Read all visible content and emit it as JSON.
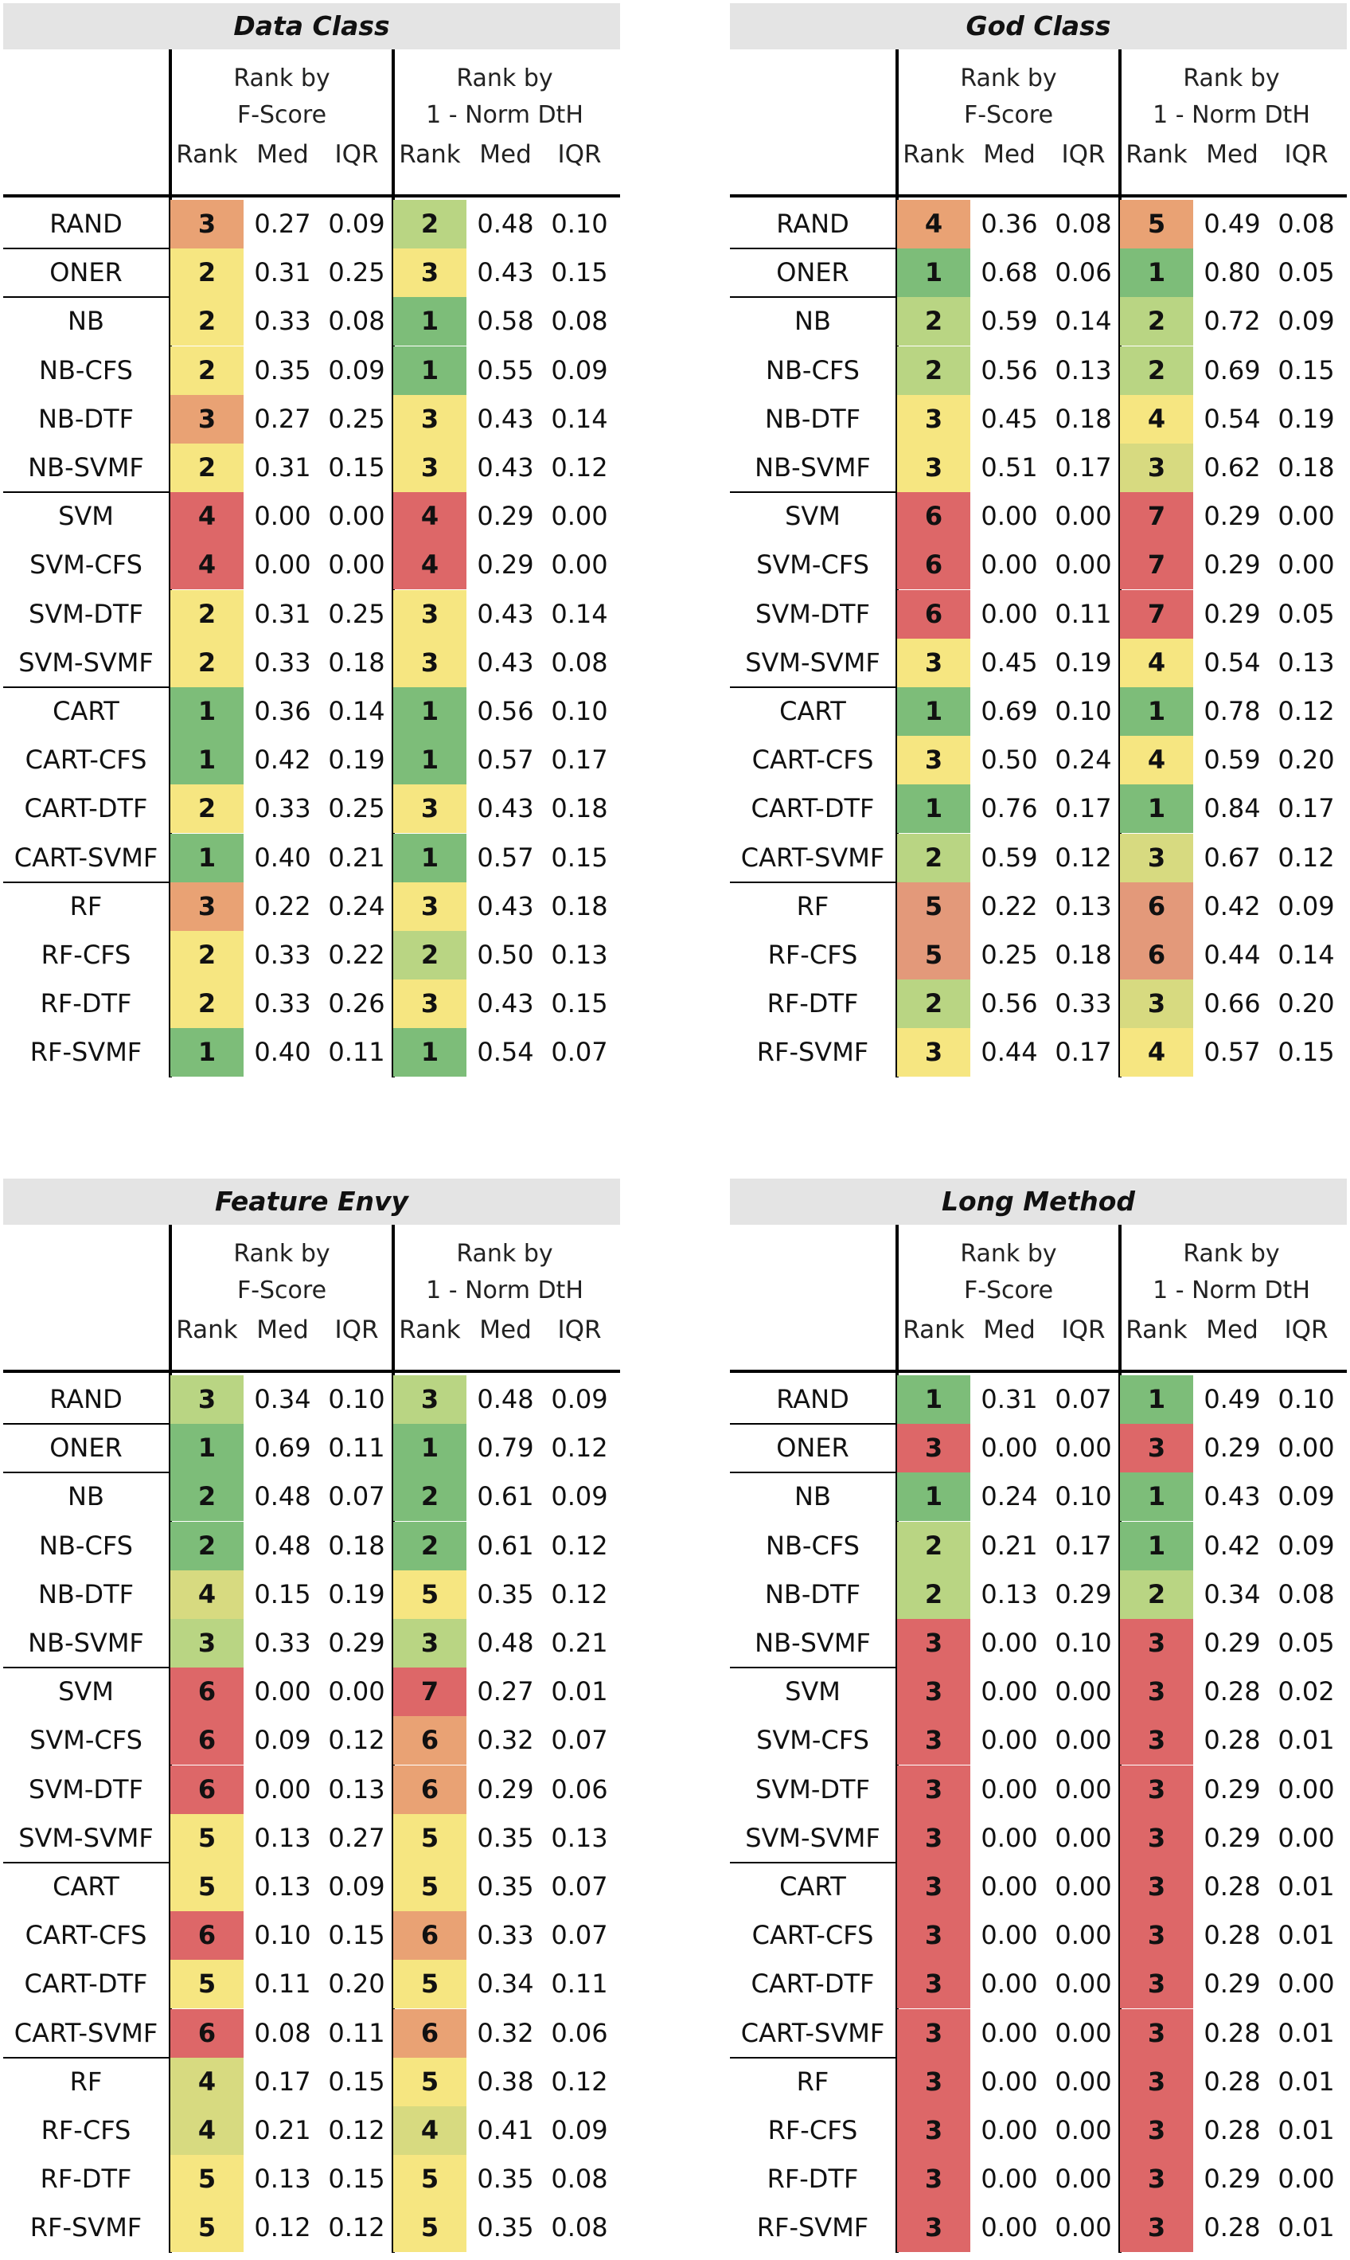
{
  "colors": {
    "1": "#7dbd79",
    "2": "#b9d583",
    "3": "#d7da80",
    "4": "#f5e580",
    "5": "#e8a675",
    "6": "#e3997a",
    "7": "#dd6768",
    "bad": "#dd6768",
    "mid": "#e9a274",
    "warn": "#f6e681"
  },
  "headers": {
    "group1": [
      "Rank by",
      "F-Score"
    ],
    "group2": [
      "Rank by",
      "1 - Norm DtH"
    ],
    "cols": [
      "Rank",
      "Med",
      "IQR",
      "Rank",
      "Med",
      "IQR"
    ]
  },
  "panels": [
    {
      "title": "Data Class",
      "rows": [
        {
          "label": "RAND",
          "f": [
            "3",
            "0.27",
            "0.09"
          ],
          "d": [
            "2",
            "0.48",
            "0.10"
          ],
          "fc": "mid",
          "dc": "2"
        },
        {
          "label": "ONER",
          "f": [
            "2",
            "0.31",
            "0.25"
          ],
          "d": [
            "3",
            "0.43",
            "0.15"
          ],
          "fc": "warn",
          "dc": "warn"
        },
        {
          "label": "NB",
          "f": [
            "2",
            "0.33",
            "0.08"
          ],
          "d": [
            "1",
            "0.58",
            "0.08"
          ],
          "fc": "warn",
          "dc": "1"
        },
        {
          "label": "NB-CFS",
          "f": [
            "2",
            "0.35",
            "0.09"
          ],
          "d": [
            "1",
            "0.55",
            "0.09"
          ],
          "fc": "warn",
          "dc": "1"
        },
        {
          "label": "NB-DTF",
          "f": [
            "3",
            "0.27",
            "0.25"
          ],
          "d": [
            "3",
            "0.43",
            "0.14"
          ],
          "fc": "mid",
          "dc": "warn"
        },
        {
          "label": "NB-SVMF",
          "f": [
            "2",
            "0.31",
            "0.15"
          ],
          "d": [
            "3",
            "0.43",
            "0.12"
          ],
          "fc": "warn",
          "dc": "warn"
        },
        {
          "label": "SVM",
          "f": [
            "4",
            "0.00",
            "0.00"
          ],
          "d": [
            "4",
            "0.29",
            "0.00"
          ],
          "fc": "bad",
          "dc": "bad"
        },
        {
          "label": "SVM-CFS",
          "f": [
            "4",
            "0.00",
            "0.00"
          ],
          "d": [
            "4",
            "0.29",
            "0.00"
          ],
          "fc": "bad",
          "dc": "bad"
        },
        {
          "label": "SVM-DTF",
          "f": [
            "2",
            "0.31",
            "0.25"
          ],
          "d": [
            "3",
            "0.43",
            "0.14"
          ],
          "fc": "warn",
          "dc": "warn"
        },
        {
          "label": "SVM-SVMF",
          "f": [
            "2",
            "0.33",
            "0.18"
          ],
          "d": [
            "3",
            "0.43",
            "0.08"
          ],
          "fc": "warn",
          "dc": "warn"
        },
        {
          "label": "CART",
          "f": [
            "1",
            "0.36",
            "0.14"
          ],
          "d": [
            "1",
            "0.56",
            "0.10"
          ],
          "fc": "1",
          "dc": "1"
        },
        {
          "label": "CART-CFS",
          "f": [
            "1",
            "0.42",
            "0.19"
          ],
          "d": [
            "1",
            "0.57",
            "0.17"
          ],
          "fc": "1",
          "dc": "1"
        },
        {
          "label": "CART-DTF",
          "f": [
            "2",
            "0.33",
            "0.25"
          ],
          "d": [
            "3",
            "0.43",
            "0.18"
          ],
          "fc": "warn",
          "dc": "warn"
        },
        {
          "label": "CART-SVMF",
          "f": [
            "1",
            "0.40",
            "0.21"
          ],
          "d": [
            "1",
            "0.57",
            "0.15"
          ],
          "fc": "1",
          "dc": "1"
        },
        {
          "label": "RF",
          "f": [
            "3",
            "0.22",
            "0.24"
          ],
          "d": [
            "3",
            "0.43",
            "0.18"
          ],
          "fc": "mid",
          "dc": "warn"
        },
        {
          "label": "RF-CFS",
          "f": [
            "2",
            "0.33",
            "0.22"
          ],
          "d": [
            "2",
            "0.50",
            "0.13"
          ],
          "fc": "warn",
          "dc": "2"
        },
        {
          "label": "RF-DTF",
          "f": [
            "2",
            "0.33",
            "0.26"
          ],
          "d": [
            "3",
            "0.43",
            "0.15"
          ],
          "fc": "warn",
          "dc": "warn"
        },
        {
          "label": "RF-SVMF",
          "f": [
            "1",
            "0.40",
            "0.11"
          ],
          "d": [
            "1",
            "0.54",
            "0.07"
          ],
          "fc": "1",
          "dc": "1"
        }
      ]
    },
    {
      "title": "God Class",
      "rows": [
        {
          "label": "RAND",
          "f": [
            "4",
            "0.36",
            "0.08"
          ],
          "d": [
            "5",
            "0.49",
            "0.08"
          ],
          "fc": "mid",
          "dc": "mid"
        },
        {
          "label": "ONER",
          "f": [
            "1",
            "0.68",
            "0.06"
          ],
          "d": [
            "1",
            "0.80",
            "0.05"
          ],
          "fc": "1",
          "dc": "1"
        },
        {
          "label": "NB",
          "f": [
            "2",
            "0.59",
            "0.14"
          ],
          "d": [
            "2",
            "0.72",
            "0.09"
          ],
          "fc": "2",
          "dc": "2"
        },
        {
          "label": "NB-CFS",
          "f": [
            "2",
            "0.56",
            "0.13"
          ],
          "d": [
            "2",
            "0.69",
            "0.15"
          ],
          "fc": "2",
          "dc": "2"
        },
        {
          "label": "NB-DTF",
          "f": [
            "3",
            "0.45",
            "0.18"
          ],
          "d": [
            "4",
            "0.54",
            "0.19"
          ],
          "fc": "warn",
          "dc": "warn"
        },
        {
          "label": "NB-SVMF",
          "f": [
            "3",
            "0.51",
            "0.17"
          ],
          "d": [
            "3",
            "0.62",
            "0.18"
          ],
          "fc": "warn",
          "dc": "3"
        },
        {
          "label": "SVM",
          "f": [
            "6",
            "0.00",
            "0.00"
          ],
          "d": [
            "7",
            "0.29",
            "0.00"
          ],
          "fc": "bad",
          "dc": "bad"
        },
        {
          "label": "SVM-CFS",
          "f": [
            "6",
            "0.00",
            "0.00"
          ],
          "d": [
            "7",
            "0.29",
            "0.00"
          ],
          "fc": "bad",
          "dc": "bad"
        },
        {
          "label": "SVM-DTF",
          "f": [
            "6",
            "0.00",
            "0.11"
          ],
          "d": [
            "7",
            "0.29",
            "0.05"
          ],
          "fc": "bad",
          "dc": "bad"
        },
        {
          "label": "SVM-SVMF",
          "f": [
            "3",
            "0.45",
            "0.19"
          ],
          "d": [
            "4",
            "0.54",
            "0.13"
          ],
          "fc": "warn",
          "dc": "warn"
        },
        {
          "label": "CART",
          "f": [
            "1",
            "0.69",
            "0.10"
          ],
          "d": [
            "1",
            "0.78",
            "0.12"
          ],
          "fc": "1",
          "dc": "1"
        },
        {
          "label": "CART-CFS",
          "f": [
            "3",
            "0.50",
            "0.24"
          ],
          "d": [
            "4",
            "0.59",
            "0.20"
          ],
          "fc": "warn",
          "dc": "warn"
        },
        {
          "label": "CART-DTF",
          "f": [
            "1",
            "0.76",
            "0.17"
          ],
          "d": [
            "1",
            "0.84",
            "0.17"
          ],
          "fc": "1",
          "dc": "1"
        },
        {
          "label": "CART-SVMF",
          "f": [
            "2",
            "0.59",
            "0.12"
          ],
          "d": [
            "3",
            "0.67",
            "0.12"
          ],
          "fc": "2",
          "dc": "3"
        },
        {
          "label": "RF",
          "f": [
            "5",
            "0.22",
            "0.13"
          ],
          "d": [
            "6",
            "0.42",
            "0.09"
          ],
          "fc": "6",
          "dc": "6"
        },
        {
          "label": "RF-CFS",
          "f": [
            "5",
            "0.25",
            "0.18"
          ],
          "d": [
            "6",
            "0.44",
            "0.14"
          ],
          "fc": "6",
          "dc": "6"
        },
        {
          "label": "RF-DTF",
          "f": [
            "2",
            "0.56",
            "0.33"
          ],
          "d": [
            "3",
            "0.66",
            "0.20"
          ],
          "fc": "2",
          "dc": "3"
        },
        {
          "label": "RF-SVMF",
          "f": [
            "3",
            "0.44",
            "0.17"
          ],
          "d": [
            "4",
            "0.57",
            "0.15"
          ],
          "fc": "warn",
          "dc": "warn"
        }
      ]
    },
    {
      "title": "Feature Envy",
      "rows": [
        {
          "label": "RAND",
          "f": [
            "3",
            "0.34",
            "0.10"
          ],
          "d": [
            "3",
            "0.48",
            "0.09"
          ],
          "fc": "2",
          "dc": "2"
        },
        {
          "label": "ONER",
          "f": [
            "1",
            "0.69",
            "0.11"
          ],
          "d": [
            "1",
            "0.79",
            "0.12"
          ],
          "fc": "1",
          "dc": "1"
        },
        {
          "label": "NB",
          "f": [
            "2",
            "0.48",
            "0.07"
          ],
          "d": [
            "2",
            "0.61",
            "0.09"
          ],
          "fc": "1",
          "dc": "1"
        },
        {
          "label": "NB-CFS",
          "f": [
            "2",
            "0.48",
            "0.18"
          ],
          "d": [
            "2",
            "0.61",
            "0.12"
          ],
          "fc": "1",
          "dc": "1"
        },
        {
          "label": "NB-DTF",
          "f": [
            "4",
            "0.15",
            "0.19"
          ],
          "d": [
            "5",
            "0.35",
            "0.12"
          ],
          "fc": "3",
          "dc": "warn"
        },
        {
          "label": "NB-SVMF",
          "f": [
            "3",
            "0.33",
            "0.29"
          ],
          "d": [
            "3",
            "0.48",
            "0.21"
          ],
          "fc": "2",
          "dc": "2"
        },
        {
          "label": "SVM",
          "f": [
            "6",
            "0.00",
            "0.00"
          ],
          "d": [
            "7",
            "0.27",
            "0.01"
          ],
          "fc": "bad",
          "dc": "bad"
        },
        {
          "label": "SVM-CFS",
          "f": [
            "6",
            "0.09",
            "0.12"
          ],
          "d": [
            "6",
            "0.32",
            "0.07"
          ],
          "fc": "bad",
          "dc": "mid"
        },
        {
          "label": "SVM-DTF",
          "f": [
            "6",
            "0.00",
            "0.13"
          ],
          "d": [
            "6",
            "0.29",
            "0.06"
          ],
          "fc": "bad",
          "dc": "mid"
        },
        {
          "label": "SVM-SVMF",
          "f": [
            "5",
            "0.13",
            "0.27"
          ],
          "d": [
            "5",
            "0.35",
            "0.13"
          ],
          "fc": "warn",
          "dc": "warn"
        },
        {
          "label": "CART",
          "f": [
            "5",
            "0.13",
            "0.09"
          ],
          "d": [
            "5",
            "0.35",
            "0.07"
          ],
          "fc": "warn",
          "dc": "warn"
        },
        {
          "label": "CART-CFS",
          "f": [
            "6",
            "0.10",
            "0.15"
          ],
          "d": [
            "6",
            "0.33",
            "0.07"
          ],
          "fc": "bad",
          "dc": "mid"
        },
        {
          "label": "CART-DTF",
          "f": [
            "5",
            "0.11",
            "0.20"
          ],
          "d": [
            "5",
            "0.34",
            "0.11"
          ],
          "fc": "warn",
          "dc": "warn"
        },
        {
          "label": "CART-SVMF",
          "f": [
            "6",
            "0.08",
            "0.11"
          ],
          "d": [
            "6",
            "0.32",
            "0.06"
          ],
          "fc": "bad",
          "dc": "mid"
        },
        {
          "label": "RF",
          "f": [
            "4",
            "0.17",
            "0.15"
          ],
          "d": [
            "5",
            "0.38",
            "0.12"
          ],
          "fc": "3",
          "dc": "warn"
        },
        {
          "label": "RF-CFS",
          "f": [
            "4",
            "0.21",
            "0.12"
          ],
          "d": [
            "4",
            "0.41",
            "0.09"
          ],
          "fc": "3",
          "dc": "3"
        },
        {
          "label": "RF-DTF",
          "f": [
            "5",
            "0.13",
            "0.15"
          ],
          "d": [
            "5",
            "0.35",
            "0.08"
          ],
          "fc": "warn",
          "dc": "warn"
        },
        {
          "label": "RF-SVMF",
          "f": [
            "5",
            "0.12",
            "0.12"
          ],
          "d": [
            "5",
            "0.35",
            "0.08"
          ],
          "fc": "warn",
          "dc": "warn"
        }
      ]
    },
    {
      "title": "Long Method",
      "rows": [
        {
          "label": "RAND",
          "f": [
            "1",
            "0.31",
            "0.07"
          ],
          "d": [
            "1",
            "0.49",
            "0.10"
          ],
          "fc": "1",
          "dc": "1"
        },
        {
          "label": "ONER",
          "f": [
            "3",
            "0.00",
            "0.00"
          ],
          "d": [
            "3",
            "0.29",
            "0.00"
          ],
          "fc": "bad",
          "dc": "bad"
        },
        {
          "label": "NB",
          "f": [
            "1",
            "0.24",
            "0.10"
          ],
          "d": [
            "1",
            "0.43",
            "0.09"
          ],
          "fc": "1",
          "dc": "1"
        },
        {
          "label": "NB-CFS",
          "f": [
            "2",
            "0.21",
            "0.17"
          ],
          "d": [
            "1",
            "0.42",
            "0.09"
          ],
          "fc": "2",
          "dc": "1"
        },
        {
          "label": "NB-DTF",
          "f": [
            "2",
            "0.13",
            "0.29"
          ],
          "d": [
            "2",
            "0.34",
            "0.08"
          ],
          "fc": "2",
          "dc": "2"
        },
        {
          "label": "NB-SVMF",
          "f": [
            "3",
            "0.00",
            "0.10"
          ],
          "d": [
            "3",
            "0.29",
            "0.05"
          ],
          "fc": "bad",
          "dc": "bad"
        },
        {
          "label": "SVM",
          "f": [
            "3",
            "0.00",
            "0.00"
          ],
          "d": [
            "3",
            "0.28",
            "0.02"
          ],
          "fc": "bad",
          "dc": "bad"
        },
        {
          "label": "SVM-CFS",
          "f": [
            "3",
            "0.00",
            "0.00"
          ],
          "d": [
            "3",
            "0.28",
            "0.01"
          ],
          "fc": "bad",
          "dc": "bad"
        },
        {
          "label": "SVM-DTF",
          "f": [
            "3",
            "0.00",
            "0.00"
          ],
          "d": [
            "3",
            "0.29",
            "0.00"
          ],
          "fc": "bad",
          "dc": "bad"
        },
        {
          "label": "SVM-SVMF",
          "f": [
            "3",
            "0.00",
            "0.00"
          ],
          "d": [
            "3",
            "0.29",
            "0.00"
          ],
          "fc": "bad",
          "dc": "bad"
        },
        {
          "label": "CART",
          "f": [
            "3",
            "0.00",
            "0.00"
          ],
          "d": [
            "3",
            "0.28",
            "0.01"
          ],
          "fc": "bad",
          "dc": "bad"
        },
        {
          "label": "CART-CFS",
          "f": [
            "3",
            "0.00",
            "0.00"
          ],
          "d": [
            "3",
            "0.28",
            "0.01"
          ],
          "fc": "bad",
          "dc": "bad"
        },
        {
          "label": "CART-DTF",
          "f": [
            "3",
            "0.00",
            "0.00"
          ],
          "d": [
            "3",
            "0.29",
            "0.00"
          ],
          "fc": "bad",
          "dc": "bad"
        },
        {
          "label": "CART-SVMF",
          "f": [
            "3",
            "0.00",
            "0.00"
          ],
          "d": [
            "3",
            "0.28",
            "0.01"
          ],
          "fc": "bad",
          "dc": "bad"
        },
        {
          "label": "RF",
          "f": [
            "3",
            "0.00",
            "0.00"
          ],
          "d": [
            "3",
            "0.28",
            "0.01"
          ],
          "fc": "bad",
          "dc": "bad"
        },
        {
          "label": "RF-CFS",
          "f": [
            "3",
            "0.00",
            "0.00"
          ],
          "d": [
            "3",
            "0.28",
            "0.01"
          ],
          "fc": "bad",
          "dc": "bad"
        },
        {
          "label": "RF-DTF",
          "f": [
            "3",
            "0.00",
            "0.00"
          ],
          "d": [
            "3",
            "0.29",
            "0.00"
          ],
          "fc": "bad",
          "dc": "bad"
        },
        {
          "label": "RF-SVMF",
          "f": [
            "3",
            "0.00",
            "0.00"
          ],
          "d": [
            "3",
            "0.28",
            "0.01"
          ],
          "fc": "bad",
          "dc": "bad"
        }
      ]
    }
  ]
}
